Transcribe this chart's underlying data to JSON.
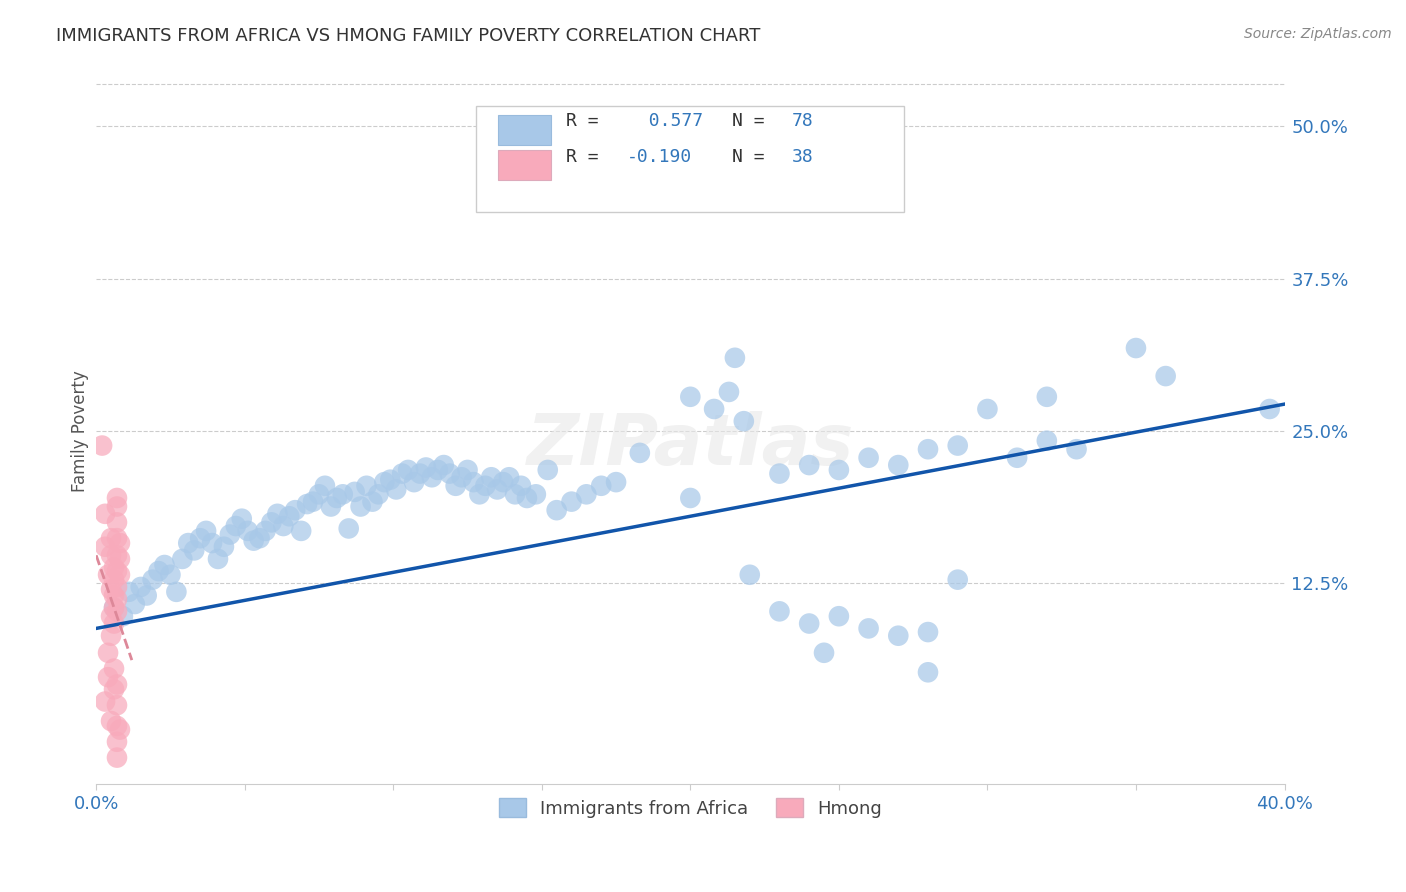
{
  "title": "IMMIGRANTS FROM AFRICA VS HMONG FAMILY POVERTY CORRELATION CHART",
  "source": "Source: ZipAtlas.com",
  "ylabel": "Family Poverty",
  "xlim": [
    0.0,
    0.4
  ],
  "ylim": [
    -0.04,
    0.54
  ],
  "xtick_positions": [
    0.0,
    0.05,
    0.1,
    0.15,
    0.2,
    0.25,
    0.3,
    0.35,
    0.4
  ],
  "xticklabels": [
    "0.0%",
    "",
    "",
    "",
    "",
    "",
    "",
    "",
    "40.0%"
  ],
  "ytick_positions": [
    0.0,
    0.125,
    0.25,
    0.375,
    0.5
  ],
  "ytick_labels": [
    "",
    "12.5%",
    "25.0%",
    "37.5%",
    "50.0%"
  ],
  "grid_lines": [
    0.125,
    0.25,
    0.375,
    0.5
  ],
  "legend_r_africa": " 0.577",
  "legend_n_africa": "78",
  "legend_r_hmong": "-0.190",
  "legend_n_hmong": "38",
  "africa_color": "#a8c8e8",
  "hmong_color": "#f8aabb",
  "africa_line_color": "#1155aa",
  "hmong_line_color": "#dd8899",
  "africa_line_x0": 0.0,
  "africa_line_y0": 0.088,
  "africa_line_x1": 0.4,
  "africa_line_y1": 0.272,
  "hmong_line_x0": 0.0,
  "hmong_line_y0": 0.148,
  "hmong_line_x1": 0.012,
  "hmong_line_y1": 0.062,
  "blue_scatter": [
    [
      0.006,
      0.105
    ],
    [
      0.009,
      0.098
    ],
    [
      0.011,
      0.118
    ],
    [
      0.013,
      0.108
    ],
    [
      0.015,
      0.122
    ],
    [
      0.017,
      0.115
    ],
    [
      0.019,
      0.128
    ],
    [
      0.021,
      0.135
    ],
    [
      0.023,
      0.14
    ],
    [
      0.025,
      0.132
    ],
    [
      0.027,
      0.118
    ],
    [
      0.029,
      0.145
    ],
    [
      0.031,
      0.158
    ],
    [
      0.033,
      0.152
    ],
    [
      0.035,
      0.162
    ],
    [
      0.037,
      0.168
    ],
    [
      0.039,
      0.158
    ],
    [
      0.041,
      0.145
    ],
    [
      0.043,
      0.155
    ],
    [
      0.045,
      0.165
    ],
    [
      0.047,
      0.172
    ],
    [
      0.049,
      0.178
    ],
    [
      0.051,
      0.168
    ],
    [
      0.053,
      0.16
    ],
    [
      0.055,
      0.162
    ],
    [
      0.057,
      0.168
    ],
    [
      0.059,
      0.175
    ],
    [
      0.061,
      0.182
    ],
    [
      0.063,
      0.172
    ],
    [
      0.065,
      0.18
    ],
    [
      0.067,
      0.185
    ],
    [
      0.069,
      0.168
    ],
    [
      0.071,
      0.19
    ],
    [
      0.073,
      0.192
    ],
    [
      0.075,
      0.198
    ],
    [
      0.077,
      0.205
    ],
    [
      0.079,
      0.188
    ],
    [
      0.081,
      0.195
    ],
    [
      0.083,
      0.198
    ],
    [
      0.085,
      0.17
    ],
    [
      0.087,
      0.2
    ],
    [
      0.089,
      0.188
    ],
    [
      0.091,
      0.205
    ],
    [
      0.093,
      0.192
    ],
    [
      0.095,
      0.198
    ],
    [
      0.097,
      0.208
    ],
    [
      0.099,
      0.21
    ],
    [
      0.101,
      0.202
    ],
    [
      0.103,
      0.215
    ],
    [
      0.105,
      0.218
    ],
    [
      0.107,
      0.208
    ],
    [
      0.109,
      0.215
    ],
    [
      0.111,
      0.22
    ],
    [
      0.113,
      0.212
    ],
    [
      0.115,
      0.218
    ],
    [
      0.117,
      0.222
    ],
    [
      0.119,
      0.215
    ],
    [
      0.121,
      0.205
    ],
    [
      0.123,
      0.212
    ],
    [
      0.125,
      0.218
    ],
    [
      0.127,
      0.208
    ],
    [
      0.129,
      0.198
    ],
    [
      0.131,
      0.205
    ],
    [
      0.133,
      0.212
    ],
    [
      0.135,
      0.202
    ],
    [
      0.137,
      0.208
    ],
    [
      0.139,
      0.212
    ],
    [
      0.141,
      0.198
    ],
    [
      0.143,
      0.205
    ],
    [
      0.145,
      0.195
    ],
    [
      0.155,
      0.185
    ],
    [
      0.16,
      0.192
    ],
    [
      0.165,
      0.198
    ],
    [
      0.17,
      0.205
    ],
    [
      0.175,
      0.208
    ],
    [
      0.2,
      0.278
    ],
    [
      0.208,
      0.268
    ],
    [
      0.213,
      0.282
    ],
    [
      0.218,
      0.258
    ],
    [
      0.215,
      0.31
    ],
    [
      0.23,
      0.215
    ],
    [
      0.24,
      0.222
    ],
    [
      0.25,
      0.218
    ],
    [
      0.26,
      0.228
    ],
    [
      0.27,
      0.222
    ],
    [
      0.28,
      0.235
    ],
    [
      0.29,
      0.238
    ],
    [
      0.3,
      0.268
    ],
    [
      0.31,
      0.228
    ],
    [
      0.32,
      0.278
    ],
    [
      0.23,
      0.102
    ],
    [
      0.24,
      0.092
    ],
    [
      0.25,
      0.098
    ],
    [
      0.26,
      0.088
    ],
    [
      0.27,
      0.082
    ],
    [
      0.28,
      0.085
    ],
    [
      0.29,
      0.128
    ],
    [
      0.28,
      0.052
    ],
    [
      0.245,
      0.068
    ],
    [
      0.35,
      0.318
    ],
    [
      0.36,
      0.295
    ],
    [
      0.395,
      0.268
    ],
    [
      0.32,
      0.242
    ],
    [
      0.33,
      0.235
    ],
    [
      0.183,
      0.232
    ],
    [
      0.22,
      0.132
    ],
    [
      0.148,
      0.198
    ],
    [
      0.152,
      0.218
    ],
    [
      0.2,
      0.195
    ]
  ],
  "pink_scatter": [
    [
      0.002,
      0.238
    ],
    [
      0.003,
      0.182
    ],
    [
      0.003,
      0.155
    ],
    [
      0.003,
      0.028
    ],
    [
      0.004,
      0.132
    ],
    [
      0.004,
      0.068
    ],
    [
      0.004,
      0.048
    ],
    [
      0.005,
      0.148
    ],
    [
      0.005,
      0.162
    ],
    [
      0.005,
      0.12
    ],
    [
      0.005,
      0.098
    ],
    [
      0.005,
      0.082
    ],
    [
      0.005,
      0.012
    ],
    [
      0.006,
      0.138
    ],
    [
      0.006,
      0.128
    ],
    [
      0.006,
      0.115
    ],
    [
      0.006,
      0.105
    ],
    [
      0.006,
      0.092
    ],
    [
      0.006,
      0.055
    ],
    [
      0.006,
      0.038
    ],
    [
      0.007,
      0.175
    ],
    [
      0.007,
      0.162
    ],
    [
      0.007,
      0.148
    ],
    [
      0.007,
      0.135
    ],
    [
      0.007,
      0.122
    ],
    [
      0.007,
      0.112
    ],
    [
      0.007,
      0.102
    ],
    [
      0.007,
      0.188
    ],
    [
      0.007,
      0.195
    ],
    [
      0.007,
      0.042
    ],
    [
      0.007,
      0.025
    ],
    [
      0.007,
      0.008
    ],
    [
      0.007,
      -0.005
    ],
    [
      0.007,
      -0.018
    ],
    [
      0.008,
      0.158
    ],
    [
      0.008,
      0.145
    ],
    [
      0.008,
      0.132
    ],
    [
      0.008,
      0.005
    ]
  ]
}
